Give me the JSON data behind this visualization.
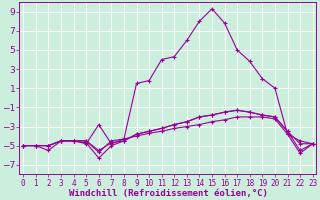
{
  "background_color": "#cceedd",
  "grid_color": "#aaddcc",
  "line_color": "#990099",
  "xlabel": "Windchill (Refroidissement éolien,°C)",
  "xlabel_fontsize": 6.5,
  "ytick_fontsize": 6.5,
  "xtick_fontsize": 5.5,
  "yticks": [
    -7,
    -5,
    -3,
    -1,
    1,
    3,
    5,
    7,
    9
  ],
  "xticks": [
    0,
    1,
    2,
    3,
    4,
    5,
    6,
    7,
    8,
    9,
    10,
    11,
    12,
    13,
    14,
    15,
    16,
    17,
    18,
    19,
    20,
    21,
    22,
    23
  ],
  "xlim": [
    -0.3,
    23.3
  ],
  "ylim": [
    -8.0,
    10.0
  ],
  "series": [
    [
      [
        0,
        -5
      ],
      [
        1,
        -5
      ],
      [
        2,
        -5
      ],
      [
        3,
        -4.5
      ],
      [
        4,
        -4.5
      ],
      [
        5,
        -4.5
      ],
      [
        6,
        -5.7
      ],
      [
        7,
        -4.5
      ],
      [
        8,
        -4.3
      ],
      [
        9,
        -4.0
      ],
      [
        10,
        -3.7
      ],
      [
        11,
        -3.5
      ],
      [
        12,
        -3.2
      ],
      [
        13,
        -3.0
      ],
      [
        14,
        -2.8
      ],
      [
        15,
        -2.5
      ],
      [
        16,
        -2.3
      ],
      [
        17,
        -2.0
      ],
      [
        18,
        -2.0
      ],
      [
        19,
        -2.0
      ],
      [
        20,
        -2.2
      ],
      [
        21,
        -3.8
      ],
      [
        22,
        -4.5
      ],
      [
        23,
        -4.8
      ]
    ],
    [
      [
        0,
        -5
      ],
      [
        1,
        -5
      ],
      [
        2,
        -5
      ],
      [
        3,
        -4.5
      ],
      [
        4,
        -4.5
      ],
      [
        5,
        -4.5
      ],
      [
        6,
        -5.5
      ],
      [
        7,
        -4.7
      ],
      [
        8,
        -4.5
      ],
      [
        9,
        -3.8
      ],
      [
        10,
        -3.5
      ],
      [
        11,
        -3.2
      ],
      [
        12,
        -2.8
      ],
      [
        13,
        -2.5
      ],
      [
        14,
        -2.0
      ],
      [
        15,
        -1.8
      ],
      [
        16,
        -1.5
      ],
      [
        17,
        -1.3
      ],
      [
        18,
        -1.5
      ],
      [
        19,
        -1.8
      ],
      [
        20,
        -2.0
      ],
      [
        21,
        -3.5
      ],
      [
        22,
        -4.8
      ],
      [
        23,
        -4.8
      ]
    ],
    [
      [
        0,
        -5
      ],
      [
        1,
        -5
      ],
      [
        2,
        -5.5
      ],
      [
        3,
        -4.5
      ],
      [
        4,
        -4.5
      ],
      [
        5,
        -4.7
      ],
      [
        6,
        -6.3
      ],
      [
        7,
        -5.0
      ],
      [
        8,
        -4.5
      ],
      [
        9,
        -3.8
      ],
      [
        10,
        -3.5
      ],
      [
        11,
        -3.2
      ],
      [
        12,
        -2.8
      ],
      [
        13,
        -2.5
      ],
      [
        14,
        -2.0
      ],
      [
        15,
        -1.8
      ],
      [
        16,
        -1.5
      ],
      [
        17,
        -1.3
      ],
      [
        18,
        -1.5
      ],
      [
        19,
        -1.8
      ],
      [
        20,
        -2.0
      ],
      [
        21,
        -3.5
      ],
      [
        22,
        -5.5
      ],
      [
        23,
        -4.8
      ]
    ],
    [
      [
        0,
        -5
      ],
      [
        1,
        -5
      ],
      [
        2,
        -5
      ],
      [
        3,
        -4.5
      ],
      [
        4,
        -4.5
      ],
      [
        5,
        -4.8
      ],
      [
        6,
        -2.8
      ],
      [
        7,
        -4.8
      ],
      [
        8,
        -4.3
      ],
      [
        9,
        1.5
      ],
      [
        10,
        1.8
      ],
      [
        11,
        4.0
      ],
      [
        12,
        4.3
      ],
      [
        13,
        6.0
      ],
      [
        14,
        8.0
      ],
      [
        15,
        9.3
      ],
      [
        16,
        7.8
      ],
      [
        17,
        5.0
      ],
      [
        18,
        3.8
      ],
      [
        19,
        2.0
      ],
      [
        20,
        1.0
      ],
      [
        21,
        -3.8
      ],
      [
        22,
        -5.8
      ],
      [
        23,
        -4.8
      ]
    ]
  ]
}
